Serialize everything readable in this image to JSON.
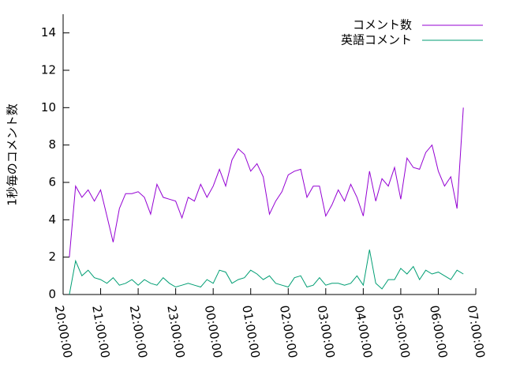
{
  "chart_data": {
    "type": "line",
    "ylabel": "1秒毎のコメント数",
    "x": [
      "20:10:00",
      "20:20:00",
      "20:30:00",
      "20:40:00",
      "20:50:00",
      "21:00:00",
      "21:10:00",
      "21:20:00",
      "21:30:00",
      "21:40:00",
      "21:50:00",
      "22:00:00",
      "22:10:00",
      "22:20:00",
      "22:30:00",
      "22:40:00",
      "22:50:00",
      "23:00:00",
      "23:10:00",
      "23:20:00",
      "23:30:00",
      "23:40:00",
      "23:50:00",
      "00:00:00",
      "00:10:00",
      "00:20:00",
      "00:30:00",
      "00:40:00",
      "00:50:00",
      "01:00:00",
      "01:10:00",
      "01:20:00",
      "01:30:00",
      "01:40:00",
      "01:50:00",
      "02:00:00",
      "02:10:00",
      "02:20:00",
      "02:30:00",
      "02:40:00",
      "02:50:00",
      "03:00:00",
      "03:10:00",
      "03:20:00",
      "03:30:00",
      "03:40:00",
      "03:50:00",
      "04:00:00",
      "04:10:00",
      "04:20:00",
      "04:30:00",
      "04:40:00",
      "04:50:00",
      "05:00:00",
      "05:10:00",
      "05:20:00",
      "05:30:00",
      "05:40:00",
      "05:50:00",
      "06:00:00",
      "06:10:00",
      "06:20:00",
      "06:30:00",
      "06:40:00"
    ],
    "series": [
      {
        "name": "コメント数",
        "color": "#9400d3",
        "values": [
          2.0,
          5.8,
          5.2,
          5.6,
          5.0,
          5.6,
          4.2,
          2.8,
          4.6,
          5.4,
          5.4,
          5.5,
          5.2,
          4.3,
          5.9,
          5.2,
          5.1,
          5.0,
          4.1,
          5.2,
          5.0,
          5.9,
          5.2,
          5.8,
          6.7,
          5.8,
          7.2,
          7.8,
          7.5,
          6.6,
          7.0,
          6.3,
          4.3,
          5.0,
          5.5,
          6.4,
          6.6,
          6.7,
          5.2,
          5.8,
          5.8,
          4.2,
          4.8,
          5.6,
          5.0,
          5.9,
          5.2,
          4.2,
          6.6,
          5.0,
          6.2,
          5.8,
          6.8,
          5.1,
          7.3,
          6.8,
          6.7,
          7.6,
          8.0,
          6.6,
          5.8,
          6.3,
          4.6,
          10.0
        ]
      },
      {
        "name": "英語コメント",
        "color": "#009e73",
        "values": [
          0.0,
          1.8,
          1.0,
          1.3,
          0.9,
          0.8,
          0.6,
          0.9,
          0.5,
          0.6,
          0.8,
          0.5,
          0.8,
          0.6,
          0.5,
          0.9,
          0.6,
          0.4,
          0.5,
          0.6,
          0.5,
          0.4,
          0.8,
          0.6,
          1.3,
          1.2,
          0.6,
          0.8,
          0.9,
          1.3,
          1.1,
          0.8,
          1.0,
          0.6,
          0.5,
          0.4,
          0.9,
          1.0,
          0.4,
          0.5,
          0.9,
          0.5,
          0.6,
          0.6,
          0.5,
          0.6,
          1.0,
          0.5,
          2.4,
          0.6,
          0.3,
          0.8,
          0.8,
          1.4,
          1.1,
          1.5,
          0.8,
          1.3,
          1.1,
          1.2,
          1.0,
          0.8,
          1.3,
          1.1
        ]
      }
    ],
    "xlim": [
      "20:00:00",
      "07:00:00"
    ],
    "xticks": [
      "20:00:00",
      "21:00:00",
      "22:00:00",
      "23:00:00",
      "00:00:00",
      "01:00:00",
      "02:00:00",
      "03:00:00",
      "04:00:00",
      "05:00:00",
      "06:00:00",
      "07:00:00"
    ],
    "ylim": [
      0,
      15
    ],
    "yticks": [
      0,
      2,
      4,
      6,
      8,
      10,
      12,
      14
    ],
    "legend": "top-right"
  }
}
